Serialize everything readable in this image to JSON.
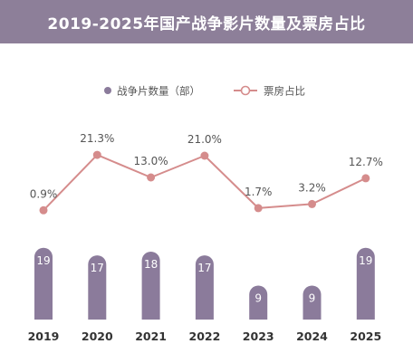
{
  "colors": {
    "title_bg": "#8d7f99",
    "bar": "#8b7b9b",
    "line": "#d58c8c",
    "text": "#555555",
    "axis_text": "#333333"
  },
  "chart_data": {
    "type": "bar+line",
    "title": "2019-2025年国产战争影片数量及票房占比",
    "categories": [
      "2019",
      "2020",
      "2021",
      "2022",
      "2023",
      "2024",
      "2025"
    ],
    "series": [
      {
        "name": "战争片数量（部）",
        "type": "bar",
        "values": [
          19,
          17,
          18,
          17,
          9,
          9,
          19
        ],
        "labels": [
          "19",
          "17",
          "18",
          "17",
          "9",
          "9",
          "19"
        ]
      },
      {
        "name": "票房占比",
        "type": "line",
        "values": [
          0.9,
          21.3,
          13.0,
          21.0,
          1.7,
          3.2,
          12.7
        ],
        "labels": [
          "0.9%",
          "21.3%",
          "13.0%",
          "21.0%",
          "1.7%",
          "3.2%",
          "12.7%"
        ]
      }
    ],
    "legend_position": "top-center",
    "grid": false
  }
}
